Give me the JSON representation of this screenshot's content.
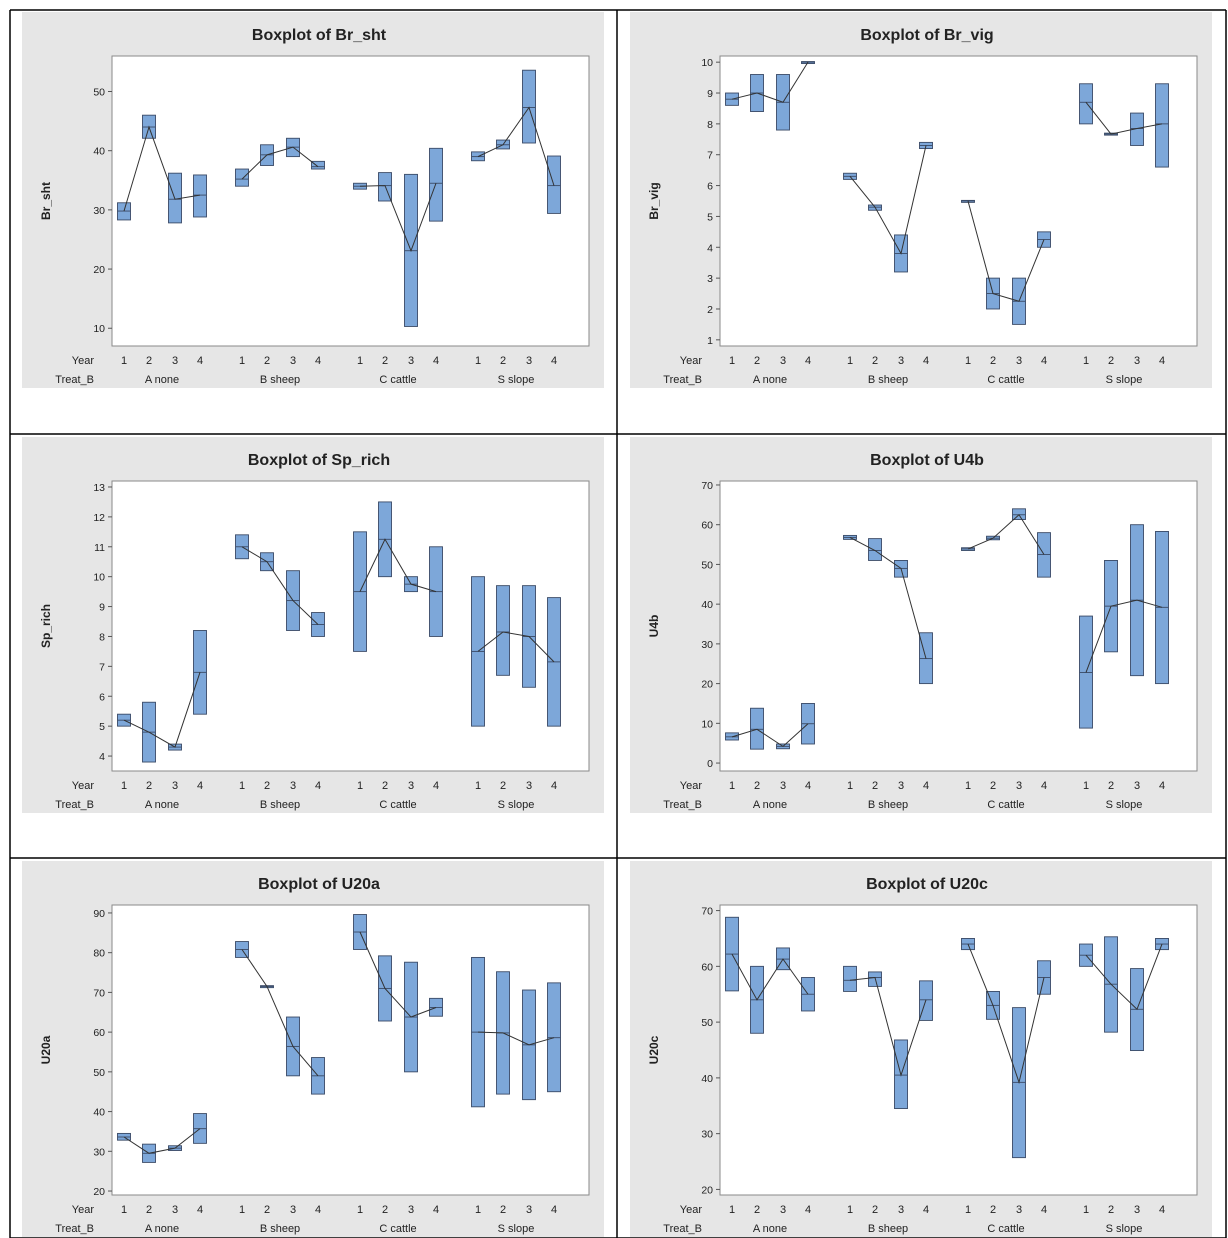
{
  "style": {
    "box_fill": "#7da7d9",
    "box_stroke": "#3a4a66",
    "panel_bg": "#e6e6e6",
    "plot_bg": "#ffffff",
    "line": "#333333",
    "grid_border": "#000000"
  },
  "common": {
    "row1_label": "Year",
    "row2_label": "Treat_B",
    "years": [
      "1",
      "2",
      "3",
      "4"
    ],
    "groups": [
      "A none",
      "B sheep",
      "C cattle",
      "S slope"
    ]
  },
  "chart_data": [
    {
      "type": "box",
      "title": "Boxplot of Br_sht",
      "ylabel": "Br_sht",
      "ylim": [
        7,
        56
      ],
      "yticks": [
        10,
        20,
        30,
        40,
        50
      ],
      "boxes": [
        [
          28.3,
          31.2,
          29.8
        ],
        [
          42.1,
          46.0,
          44.0
        ],
        [
          27.8,
          36.2,
          31.8
        ],
        [
          28.8,
          35.9,
          32.5
        ],
        [
          34.0,
          36.9,
          35.2
        ],
        [
          37.5,
          41.0,
          39.3
        ],
        [
          39.0,
          42.1,
          40.6
        ],
        [
          36.9,
          38.2,
          37.3
        ],
        [
          33.5,
          34.5,
          34.0
        ],
        [
          31.5,
          36.3,
          34.1
        ],
        [
          10.3,
          36.0,
          23.1
        ],
        [
          28.1,
          40.4,
          34.5
        ],
        [
          38.3,
          39.8,
          39.0
        ],
        [
          40.3,
          41.8,
          41.0
        ],
        [
          41.3,
          53.6,
          47.3
        ],
        [
          29.4,
          39.1,
          34.1
        ]
      ]
    },
    {
      "type": "box",
      "title": "Boxplot of Br_vig",
      "ylabel": "Br_vig",
      "ylim": [
        0.8,
        10.2
      ],
      "yticks": [
        1,
        2,
        3,
        4,
        5,
        6,
        7,
        8,
        9,
        10
      ],
      "boxes": [
        [
          8.6,
          9.0,
          8.8
        ],
        [
          8.4,
          9.6,
          9.0
        ],
        [
          7.8,
          9.6,
          8.7
        ],
        [
          9.98,
          10.02,
          10.0
        ],
        [
          6.2,
          6.4,
          6.3
        ],
        [
          5.2,
          5.37,
          5.3
        ],
        [
          3.2,
          4.4,
          3.8
        ],
        [
          7.2,
          7.4,
          7.3
        ],
        [
          5.48,
          5.52,
          5.5
        ],
        [
          2.0,
          3.0,
          2.5
        ],
        [
          1.5,
          3.0,
          2.25
        ],
        [
          4.0,
          4.5,
          4.25
        ],
        [
          8.0,
          9.3,
          8.7
        ],
        [
          7.65,
          7.7,
          7.67
        ],
        [
          7.3,
          8.35,
          7.85
        ],
        [
          6.6,
          9.3,
          8.0
        ]
      ]
    },
    {
      "type": "box",
      "title": "Boxplot of Sp_rich",
      "ylabel": "Sp_rich",
      "ylim": [
        3.5,
        13.2
      ],
      "yticks": [
        4,
        5,
        6,
        7,
        8,
        9,
        10,
        11,
        12,
        13
      ],
      "boxes": [
        [
          5.0,
          5.4,
          5.2
        ],
        [
          3.8,
          5.8,
          4.8
        ],
        [
          4.2,
          4.4,
          4.3
        ],
        [
          5.4,
          8.2,
          6.8
        ],
        [
          10.6,
          11.4,
          11.0
        ],
        [
          10.2,
          10.8,
          10.5
        ],
        [
          8.2,
          10.2,
          9.2
        ],
        [
          8.0,
          8.8,
          8.4
        ],
        [
          7.5,
          11.5,
          9.5
        ],
        [
          10.0,
          12.5,
          11.25
        ],
        [
          9.5,
          10.0,
          9.75
        ],
        [
          8.0,
          11.0,
          9.5
        ],
        [
          5.0,
          10.0,
          7.5
        ],
        [
          6.7,
          9.7,
          8.15
        ],
        [
          6.3,
          9.7,
          8.0
        ],
        [
          5.0,
          9.3,
          7.15
        ]
      ]
    },
    {
      "type": "box",
      "title": "Boxplot of U4b",
      "ylabel": "U4b",
      "ylim": [
        -2,
        71
      ],
      "yticks": [
        0,
        10,
        20,
        30,
        40,
        50,
        60,
        70
      ],
      "boxes": [
        [
          5.8,
          7.6,
          6.6
        ],
        [
          3.5,
          13.8,
          8.5
        ],
        [
          3.6,
          4.8,
          4.2
        ],
        [
          4.8,
          15.0,
          9.9
        ],
        [
          56.3,
          57.3,
          56.8
        ],
        [
          51.0,
          56.5,
          53.5
        ],
        [
          46.8,
          51.0,
          49.0
        ],
        [
          20.0,
          32.8,
          26.3
        ],
        [
          53.5,
          54.2,
          53.9
        ],
        [
          56.2,
          57.1,
          56.6
        ],
        [
          61.3,
          64.0,
          62.5
        ],
        [
          46.8,
          58.0,
          52.5
        ],
        [
          8.8,
          37.0,
          22.8
        ],
        [
          28.0,
          51.0,
          39.5
        ],
        [
          22.0,
          60.0,
          41.0
        ],
        [
          20.0,
          58.3,
          39.2
        ]
      ]
    },
    {
      "type": "box",
      "title": "Boxplot of U20a",
      "ylabel": "U20a",
      "ylim": [
        19,
        92
      ],
      "yticks": [
        20,
        30,
        40,
        50,
        60,
        70,
        80,
        90
      ],
      "boxes": [
        [
          32.8,
          34.5,
          33.6
        ],
        [
          27.2,
          31.8,
          29.5
        ],
        [
          30.2,
          31.4,
          30.8
        ],
        [
          32.0,
          39.5,
          35.7
        ],
        [
          78.8,
          82.8,
          80.8
        ],
        [
          71.2,
          71.7,
          71.5
        ],
        [
          49.0,
          63.8,
          56.4
        ],
        [
          44.4,
          53.6,
          49.0
        ],
        [
          80.8,
          89.6,
          85.2
        ],
        [
          62.8,
          79.2,
          71.0
        ],
        [
          50.0,
          77.6,
          63.8
        ],
        [
          64.0,
          68.5,
          66.2
        ],
        [
          41.2,
          78.8,
          60.0
        ],
        [
          44.4,
          75.2,
          59.8
        ],
        [
          43.0,
          70.6,
          56.8
        ],
        [
          45.0,
          72.4,
          58.6
        ]
      ]
    },
    {
      "type": "box",
      "title": "Boxplot of U20c",
      "ylabel": "U20c",
      "ylim": [
        19,
        71
      ],
      "yticks": [
        20,
        30,
        40,
        50,
        60,
        70
      ],
      "boxes": [
        [
          55.6,
          68.8,
          62.2
        ],
        [
          48.0,
          60.0,
          54.0
        ],
        [
          59.4,
          63.3,
          61.3
        ],
        [
          52.0,
          58.0,
          55.0
        ],
        [
          55.5,
          60.0,
          57.5
        ],
        [
          56.4,
          59.0,
          58.0
        ],
        [
          34.5,
          46.8,
          40.5
        ],
        [
          50.3,
          57.4,
          54.0
        ],
        [
          63.0,
          65.0,
          64.0
        ],
        [
          50.5,
          55.5,
          53.0
        ],
        [
          25.7,
          52.6,
          39.2
        ],
        [
          55.0,
          61.0,
          58.0
        ],
        [
          60.0,
          64.0,
          62.0
        ],
        [
          48.2,
          65.3,
          56.8
        ],
        [
          44.9,
          59.6,
          52.3
        ],
        [
          63.0,
          65.0,
          64.0
        ]
      ]
    }
  ]
}
